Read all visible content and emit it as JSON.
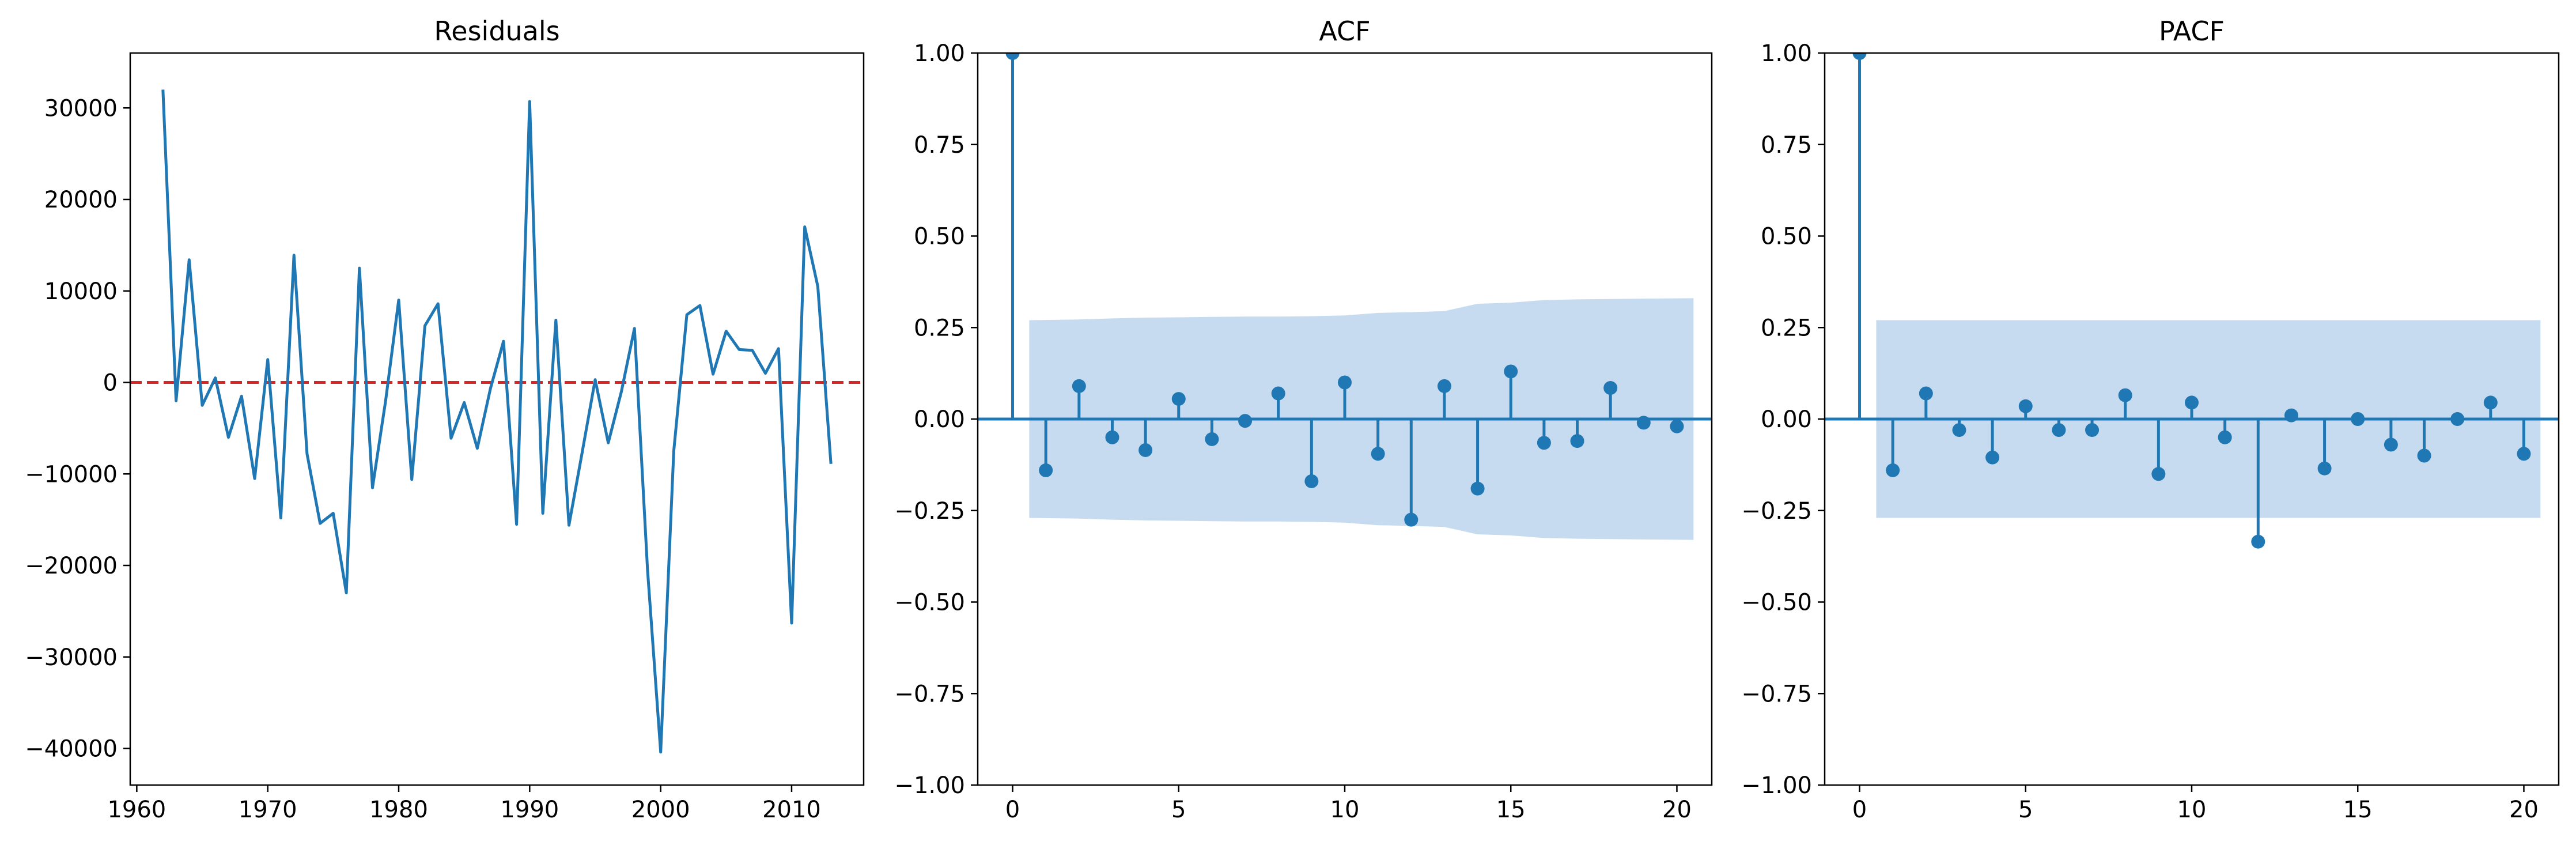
{
  "chart_data": [
    {
      "type": "line",
      "title": "Residuals",
      "xlabel": "",
      "ylabel": "",
      "xlim": [
        1959.5,
        2015.5
      ],
      "ylim": [
        -44000,
        36000
      ],
      "x_ticks": [
        1960,
        1970,
        1980,
        1990,
        2000,
        2010
      ],
      "y_ticks": [
        -40000,
        -30000,
        -20000,
        -10000,
        0,
        10000,
        20000,
        30000
      ],
      "x_tick_labels": [
        "1960",
        "1970",
        "1980",
        "1990",
        "2000",
        "2010"
      ],
      "y_tick_labels": [
        "−40000",
        "−30000",
        "−20000",
        "−10000",
        "0",
        "10000",
        "20000",
        "30000"
      ],
      "reference_line": {
        "y": 0,
        "style": "dashed",
        "color": "#d62728"
      },
      "series": [
        {
          "color": "#1f77b4",
          "x": [
            1962,
            1963,
            1964,
            1965,
            1966,
            1967,
            1968,
            1969,
            1970,
            1971,
            1972,
            1973,
            1974,
            1975,
            1976,
            1977,
            1978,
            1979,
            1980,
            1981,
            1982,
            1983,
            1984,
            1985,
            1986,
            1987,
            1988,
            1989,
            1990,
            1991,
            1992,
            1993,
            1994,
            1995,
            1996,
            1997,
            1998,
            1999,
            2000,
            2001,
            2002,
            2003,
            2004,
            2005,
            2006,
            2007,
            2008,
            2009,
            2010,
            2011,
            2012,
            2013
          ],
          "y": [
            32000,
            -2000,
            13400,
            -2500,
            500,
            -6000,
            -1500,
            -10500,
            2500,
            -14800,
            13900,
            -7800,
            -15400,
            -14300,
            -23000,
            12500,
            -11500,
            -2000,
            9000,
            -10600,
            6200,
            8600,
            -6100,
            -2200,
            -7200,
            -700,
            4500,
            -15500,
            30700,
            -14300,
            6800,
            -15600,
            -7700,
            300,
            -6600,
            -1000,
            5900,
            -20500,
            -40400,
            -7500,
            7400,
            8400,
            900,
            5600,
            3600,
            3500,
            1000,
            3700,
            -26300,
            17000,
            10500,
            -8900
          ]
        }
      ]
    },
    {
      "type": "stem",
      "title": "ACF",
      "xlabel": "",
      "ylabel": "",
      "xlim": [
        -1.05,
        21.05
      ],
      "ylim": [
        -1.0,
        1.0
      ],
      "x_ticks": [
        0,
        5,
        10,
        15,
        20
      ],
      "y_ticks": [
        -1.0,
        -0.75,
        -0.5,
        -0.25,
        0.0,
        0.25,
        0.5,
        0.75,
        1.0
      ],
      "x_tick_labels": [
        "0",
        "5",
        "10",
        "15",
        "20"
      ],
      "y_tick_labels": [
        "−1.00",
        "−0.75",
        "−0.50",
        "−0.25",
        "0.00",
        "0.25",
        "0.50",
        "0.75",
        "1.00"
      ],
      "color": "#1f77b4",
      "band_color": "#c6dbef",
      "lags": [
        0,
        1,
        2,
        3,
        4,
        5,
        6,
        7,
        8,
        9,
        10,
        11,
        12,
        13,
        14,
        15,
        16,
        17,
        18,
        19,
        20
      ],
      "values": [
        1.0,
        -0.14,
        0.09,
        -0.05,
        -0.085,
        0.055,
        -0.055,
        -0.005,
        0.07,
        -0.17,
        0.1,
        -0.095,
        -0.275,
        0.09,
        -0.19,
        0.13,
        -0.065,
        -0.06,
        0.085,
        -0.01,
        -0.02
      ],
      "confint": [
        0.27,
        0.272,
        0.275,
        0.277,
        0.278,
        0.279,
        0.28,
        0.28,
        0.281,
        0.283,
        0.29,
        0.292,
        0.295,
        0.315,
        0.318,
        0.325,
        0.327,
        0.328,
        0.329,
        0.33
      ]
    },
    {
      "type": "stem",
      "title": "PACF",
      "xlabel": "",
      "ylabel": "",
      "xlim": [
        -1.05,
        21.05
      ],
      "ylim": [
        -1.0,
        1.0
      ],
      "x_ticks": [
        0,
        5,
        10,
        15,
        20
      ],
      "y_ticks": [
        -1.0,
        -0.75,
        -0.5,
        -0.25,
        0.0,
        0.25,
        0.5,
        0.75,
        1.0
      ],
      "x_tick_labels": [
        "0",
        "5",
        "10",
        "15",
        "20"
      ],
      "y_tick_labels": [
        "−1.00",
        "−0.75",
        "−0.50",
        "−0.25",
        "0.00",
        "0.25",
        "0.50",
        "0.75",
        "1.00"
      ],
      "color": "#1f77b4",
      "band_color": "#c6dbef",
      "lags": [
        0,
        1,
        2,
        3,
        4,
        5,
        6,
        7,
        8,
        9,
        10,
        11,
        12,
        13,
        14,
        15,
        16,
        17,
        18,
        19,
        20
      ],
      "values": [
        1.0,
        -0.14,
        0.07,
        -0.03,
        -0.105,
        0.035,
        -0.03,
        -0.03,
        0.065,
        -0.15,
        0.045,
        -0.05,
        -0.335,
        0.01,
        -0.135,
        0.0,
        -0.07,
        -0.1,
        0.0,
        0.045,
        -0.095
      ],
      "confint": [
        0.27,
        0.27,
        0.27,
        0.27,
        0.27,
        0.27,
        0.27,
        0.27,
        0.27,
        0.27,
        0.27,
        0.27,
        0.27,
        0.27,
        0.27,
        0.27,
        0.27,
        0.27,
        0.27,
        0.27
      ]
    }
  ]
}
